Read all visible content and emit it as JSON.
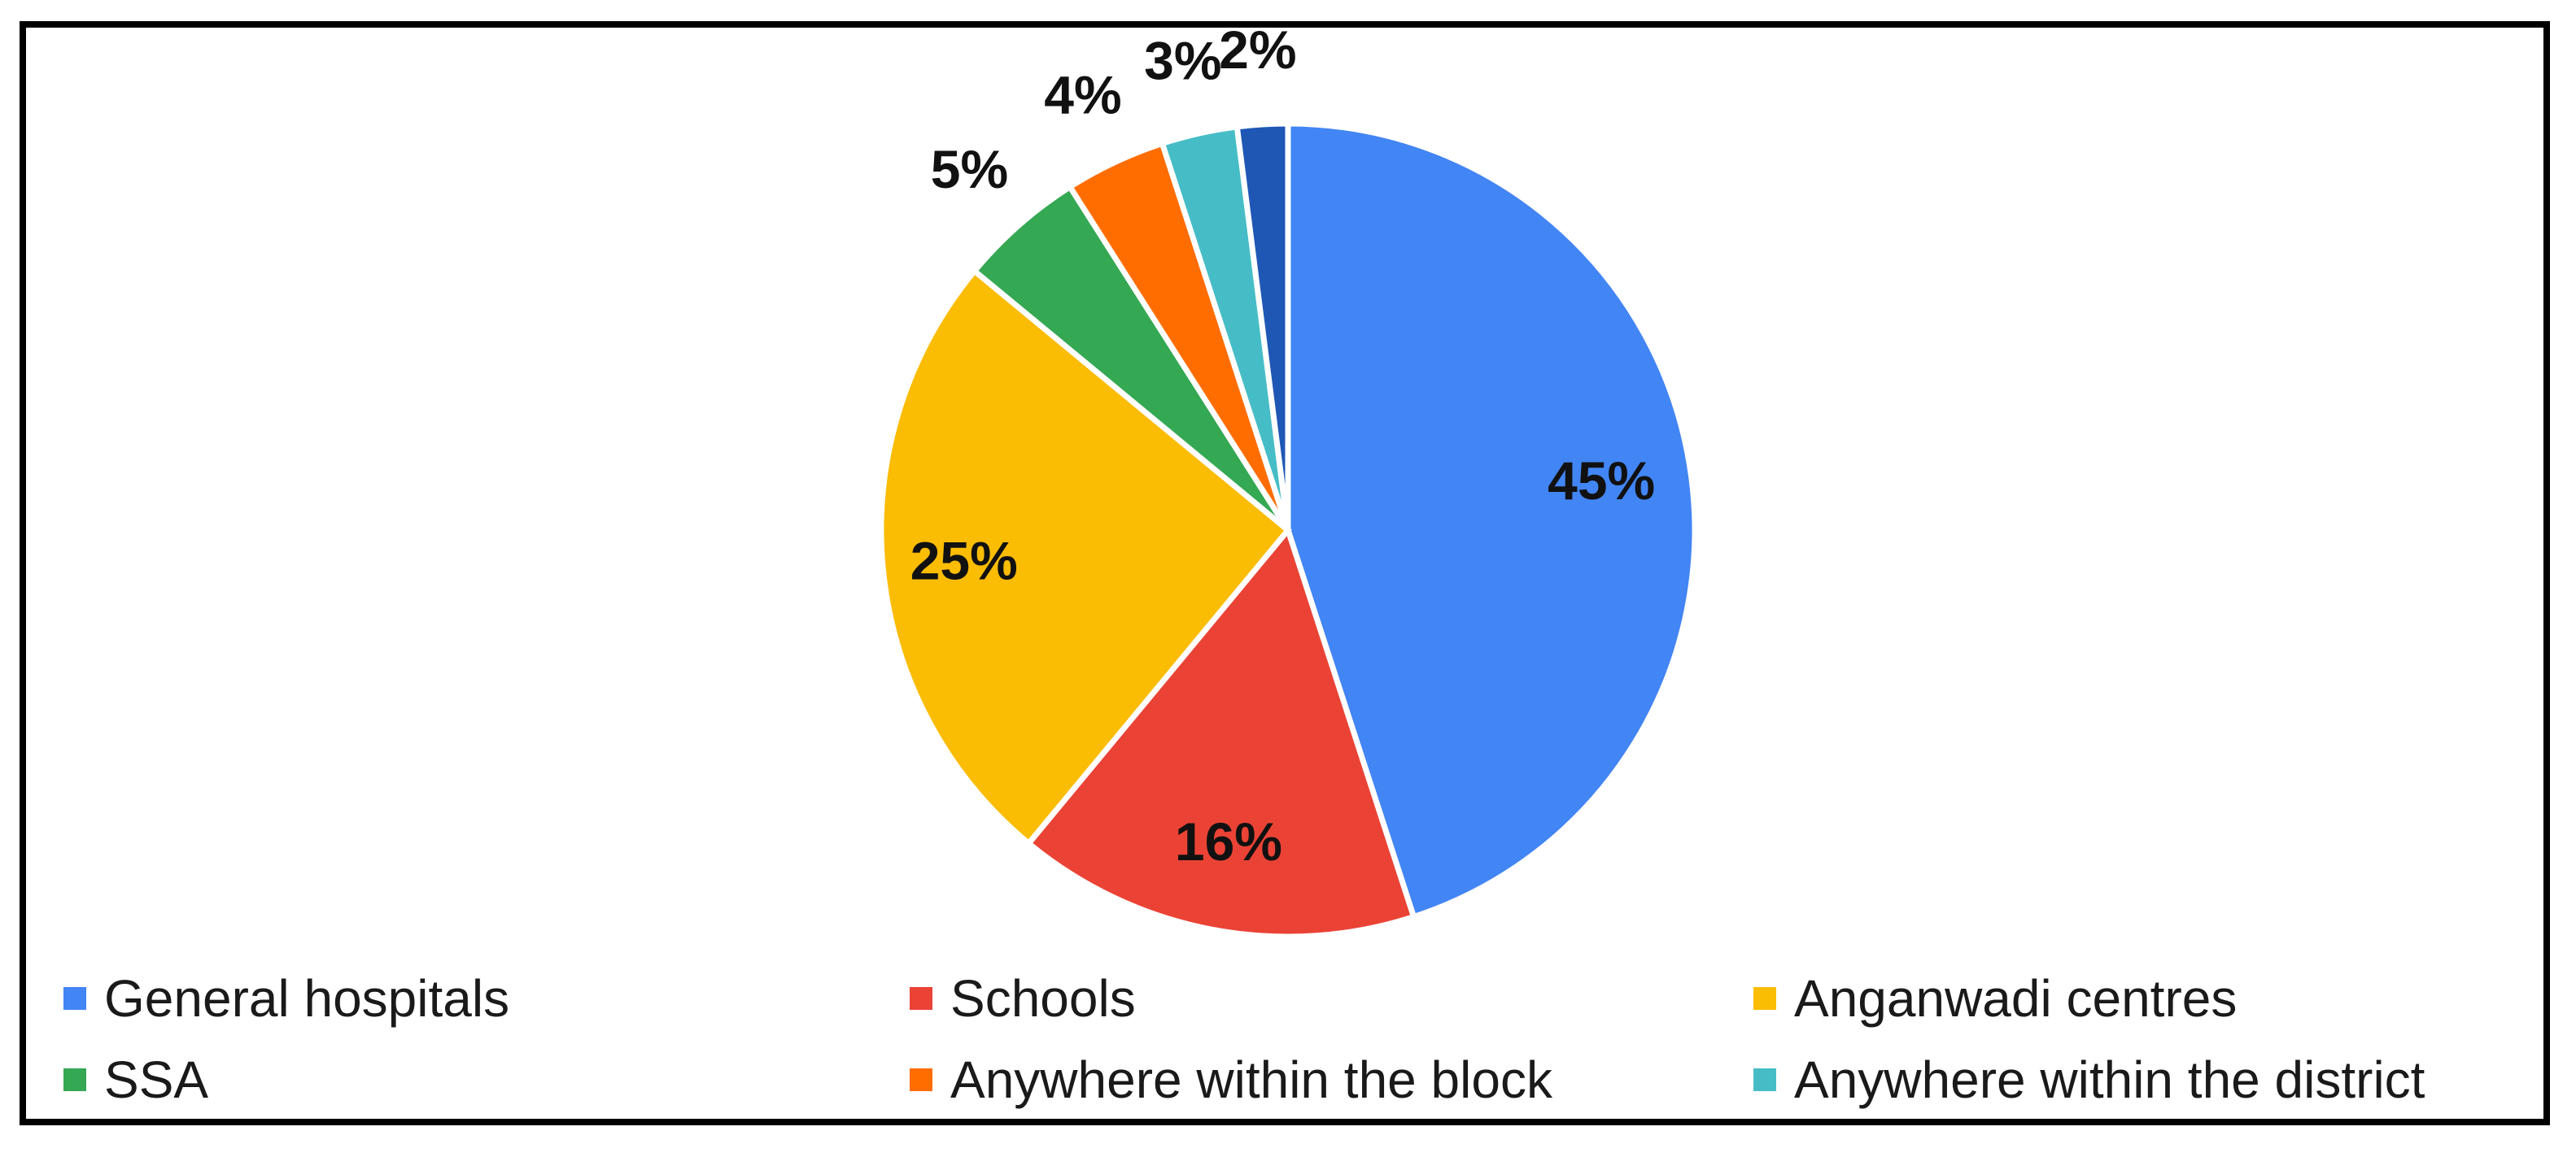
{
  "chart_data": {
    "type": "pie",
    "title": "",
    "categories": [
      "General hospitals",
      "Schools",
      "Anganwadi centres",
      "SSA",
      "Anywhere within the block",
      "Anywhere within the district",
      ""
    ],
    "values": [
      45,
      16,
      25,
      5,
      4,
      3,
      2
    ],
    "data_labels": [
      "45%",
      "16%",
      "25%",
      "5%",
      "4%",
      "3%",
      "2%"
    ],
    "colors": [
      "#4285F4",
      "#EA4335",
      "#FBBC04",
      "#34A853",
      "#FF6D01",
      "#46BDC6",
      "#1F57B5"
    ],
    "legend": {
      "placement": "bottom",
      "entries": [
        {
          "label": "General hospitals",
          "color": "#4285F4"
        },
        {
          "label": "Schools",
          "color": "#EA4335"
        },
        {
          "label": "Anganwadi centres",
          "color": "#FBBC04"
        },
        {
          "label": "SSA",
          "color": "#34A853"
        },
        {
          "label": "Anywhere within the block",
          "color": "#FF6D01"
        },
        {
          "label": "Anywhere within the district",
          "color": "#46BDC6"
        }
      ]
    }
  }
}
